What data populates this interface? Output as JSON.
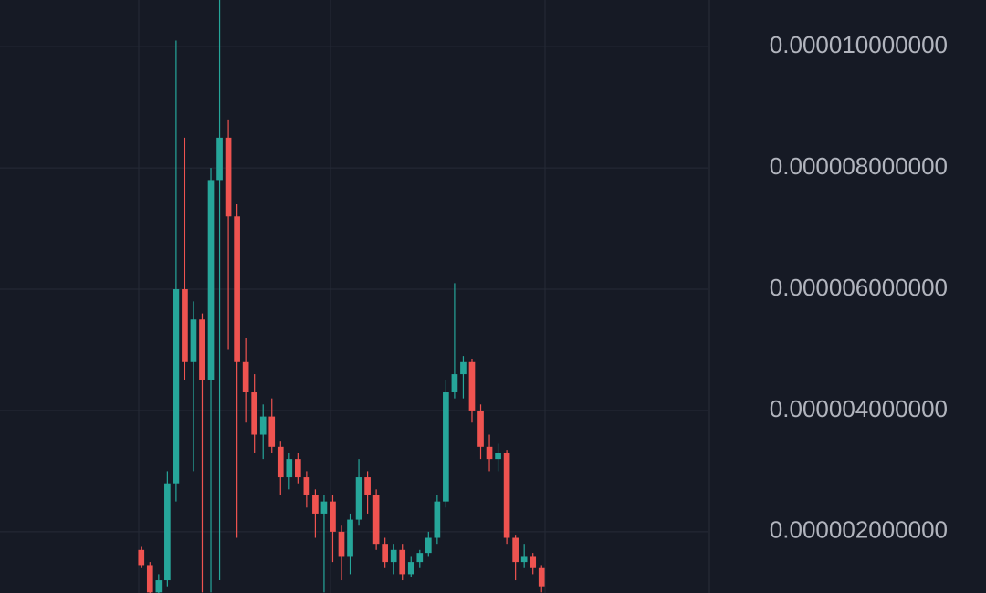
{
  "chart_data": {
    "type": "candlestick",
    "categories": [
      null,
      null,
      null,
      null,
      null,
      null,
      null,
      null,
      null,
      null,
      null,
      null,
      null,
      null,
      null,
      null,
      null,
      null,
      null,
      null,
      null,
      null,
      null,
      null,
      null,
      null,
      null,
      null,
      null,
      null,
      null,
      null,
      null,
      null,
      null,
      null,
      null,
      null,
      null,
      null,
      null,
      null,
      null,
      null,
      null,
      null,
      null
    ],
    "series": [
      {
        "open": [
          1.7e-06,
          1.45e-06,
          1e-06,
          1.2e-06,
          2.8e-06,
          6e-06,
          4.8e-06,
          5.5e-06,
          4.5e-06,
          7.8e-06,
          8.5e-06,
          7.2e-06,
          4.8e-06,
          4.3e-06,
          3.6e-06,
          3.9e-06,
          3.4e-06,
          2.9e-06,
          3.2e-06,
          2.9e-06,
          2.6e-06,
          2.3e-06,
          2.5e-06,
          2e-06,
          1.6e-06,
          2.2e-06,
          2.9e-06,
          2.6e-06,
          1.8e-06,
          1.5e-06,
          1.7e-06,
          1.3e-06,
          1.5e-06,
          1.65e-06,
          1.9e-06,
          2.5e-06,
          4.3e-06,
          4.6e-06,
          4.8e-06,
          4e-06,
          3.4e-06,
          3.2e-06,
          3.3e-06,
          1.9e-06,
          1.5e-06,
          1.6e-06,
          1.4e-06
        ],
        "high": [
          1.75e-06,
          1.5e-06,
          1.3e-06,
          3e-06,
          1.01e-05,
          8.5e-06,
          5.8e-06,
          5.6e-06,
          8e-06,
          1.08e-05,
          8.8e-06,
          7.4e-06,
          5.2e-06,
          4.6e-06,
          4.1e-06,
          4.2e-06,
          3.5e-06,
          3.3e-06,
          3.3e-06,
          3e-06,
          2.7e-06,
          2.6e-06,
          2.6e-06,
          2.1e-06,
          2.3e-06,
          3.2e-06,
          3e-06,
          2.7e-06,
          1.9e-06,
          1.8e-06,
          1.8e-06,
          1.6e-06,
          1.7e-06,
          2e-06,
          2.6e-06,
          4.5e-06,
          6.1e-06,
          4.9e-06,
          4.85e-06,
          4.1e-06,
          3.6e-06,
          3.45e-06,
          3.35e-06,
          1.95e-06,
          1.8e-06,
          1.65e-06,
          1.45e-06
        ],
        "low": [
          1.4e-06,
          9e-07,
          9e-07,
          1.1e-06,
          2.5e-06,
          4.5e-06,
          3e-06,
          1e-06,
          1e-06,
          1.2e-06,
          5e-06,
          1.9e-06,
          3.8e-06,
          3.3e-06,
          3.2e-06,
          3.3e-06,
          2.6e-06,
          2.7e-06,
          2.8e-06,
          2.4e-06,
          1.9e-06,
          1e-06,
          1.5e-06,
          1.2e-06,
          1.3e-06,
          2.1e-06,
          2.3e-06,
          1.7e-06,
          1.4e-06,
          1.3e-06,
          1.2e-06,
          1.25e-06,
          1.4e-06,
          1.6e-06,
          1.8e-06,
          2.4e-06,
          4.2e-06,
          4.2e-06,
          3.8e-06,
          3.2e-06,
          3e-06,
          3e-06,
          1.8e-06,
          1.2e-06,
          1.4e-06,
          1.3e-06,
          1e-06
        ],
        "close": [
          1.45e-06,
          1e-06,
          1.2e-06,
          2.8e-06,
          6e-06,
          4.8e-06,
          5.5e-06,
          4.5e-06,
          7.8e-06,
          8.5e-06,
          7.2e-06,
          4.8e-06,
          4.3e-06,
          3.6e-06,
          3.9e-06,
          3.4e-06,
          2.9e-06,
          3.2e-06,
          2.9e-06,
          2.6e-06,
          2.3e-06,
          2.5e-06,
          2e-06,
          1.6e-06,
          2.2e-06,
          2.9e-06,
          2.6e-06,
          1.8e-06,
          1.5e-06,
          1.7e-06,
          1.3e-06,
          1.5e-06,
          1.65e-06,
          1.9e-06,
          2.5e-06,
          4.3e-06,
          4.6e-06,
          4.8e-06,
          4e-06,
          3.4e-06,
          3.2e-06,
          3.3e-06,
          1.9e-06,
          1.5e-06,
          1.6e-06,
          1.4e-06,
          1.1e-06
        ]
      }
    ],
    "up_color": "#26a69a",
    "down_color": "#ef5350",
    "ylim": [
      9.9e-07,
      1.077e-05
    ],
    "yticks": [
      {
        "value": 2e-06,
        "label": "0.000002000000"
      },
      {
        "value": 4e-06,
        "label": "0.000004000000"
      },
      {
        "value": 6e-06,
        "label": "0.000006000000"
      },
      {
        "value": 8e-06,
        "label": "0.000008000000"
      },
      {
        "value": 1e-05,
        "label": "0.000010000000"
      }
    ],
    "grid": true
  }
}
